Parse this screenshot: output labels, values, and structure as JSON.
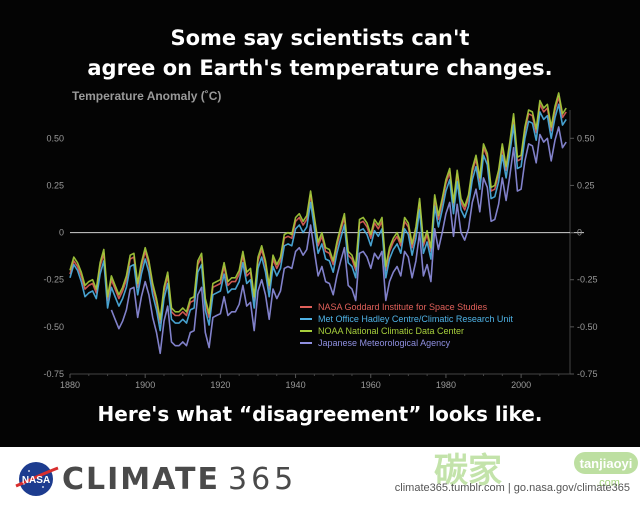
{
  "headline": {
    "line1": "Some say scientists can't",
    "line2": "agree on Earth's temperature changes.",
    "bottom": "Here's what “disagreement” looks like."
  },
  "footer": {
    "logo_text": "NASA",
    "brand_name": "CLIMATE",
    "brand_number": "365",
    "urls": "climate365.tumblr.com  |  go.nasa.gov/climate365",
    "watermark_cn": "碳家",
    "watermark_latin": "tanjiaoyi",
    "watermark_domain": ".com"
  },
  "colors": {
    "background": "#040404",
    "axis_text": "#9a9a9a",
    "zero_line": "#cfcfcf",
    "nasa": "#e0605a",
    "met": "#4fb3e6",
    "noaa": "#a7cf3c",
    "jma": "#8f8fe0"
  },
  "chart_data": {
    "type": "line",
    "title": "Temperature Anomaly (˚C)",
    "xlabel": "",
    "ylabel": "",
    "xlim": [
      1880,
      2013
    ],
    "ylim": [
      -0.75,
      0.65
    ],
    "xticks": [
      1880,
      1900,
      1920,
      1940,
      1960,
      1980,
      2000
    ],
    "yticks": [
      -0.75,
      -0.5,
      -0.25,
      0,
      0.25,
      0.5
    ],
    "ytick_labels": [
      "-0.75",
      "-0.50",
      "-0.25",
      "0",
      "0.25",
      "0.50"
    ],
    "legend_position": "lower-right",
    "grid": false,
    "series": [
      {
        "name": "NASA Goddard Institute for Space Studies",
        "color": "#e0605a",
        "start": 1880,
        "values": [
          -0.22,
          -0.15,
          -0.18,
          -0.23,
          -0.3,
          -0.28,
          -0.27,
          -0.32,
          -0.18,
          -0.11,
          -0.36,
          -0.25,
          -0.3,
          -0.35,
          -0.31,
          -0.25,
          -0.14,
          -0.13,
          -0.29,
          -0.18,
          -0.1,
          -0.17,
          -0.29,
          -0.37,
          -0.48,
          -0.31,
          -0.23,
          -0.42,
          -0.44,
          -0.44,
          -0.42,
          -0.44,
          -0.37,
          -0.36,
          -0.17,
          -0.13,
          -0.37,
          -0.45,
          -0.29,
          -0.28,
          -0.27,
          -0.18,
          -0.28,
          -0.26,
          -0.26,
          -0.22,
          -0.12,
          -0.23,
          -0.21,
          -0.36,
          -0.15,
          -0.09,
          -0.17,
          -0.3,
          -0.14,
          -0.19,
          -0.15,
          -0.03,
          -0.02,
          -0.03,
          0.06,
          0.08,
          0.04,
          0.07,
          0.2,
          0.06,
          -0.07,
          -0.02,
          -0.1,
          -0.11,
          -0.17,
          -0.07,
          0.01,
          0.08,
          -0.12,
          -0.14,
          -0.2,
          0.05,
          0.06,
          0.03,
          -0.03,
          0.05,
          0.02,
          0.06,
          -0.2,
          -0.1,
          -0.05,
          -0.02,
          -0.07,
          0.06,
          0.03,
          -0.08,
          0.01,
          0.16,
          -0.07,
          -0.01,
          -0.1,
          0.18,
          0.07,
          0.16,
          0.26,
          0.32,
          0.14,
          0.31,
          0.16,
          0.12,
          0.18,
          0.32,
          0.39,
          0.27,
          0.45,
          0.4,
          0.22,
          0.23,
          0.31,
          0.45,
          0.33,
          0.46,
          0.61,
          0.38,
          0.39,
          0.54,
          0.63,
          0.62,
          0.53,
          0.68,
          0.64,
          0.66,
          0.54,
          0.65,
          0.72,
          0.61,
          0.64
        ]
      },
      {
        "name": "Met Office Hadley Centre/Climatic Research Unit",
        "color": "#4fb3e6",
        "start": 1880,
        "values": [
          -0.24,
          -0.17,
          -0.2,
          -0.26,
          -0.34,
          -0.32,
          -0.31,
          -0.35,
          -0.22,
          -0.15,
          -0.4,
          -0.29,
          -0.34,
          -0.39,
          -0.35,
          -0.29,
          -0.18,
          -0.17,
          -0.33,
          -0.22,
          -0.14,
          -0.21,
          -0.33,
          -0.41,
          -0.52,
          -0.35,
          -0.27,
          -0.46,
          -0.48,
          -0.48,
          -0.46,
          -0.48,
          -0.41,
          -0.4,
          -0.21,
          -0.17,
          -0.41,
          -0.49,
          -0.33,
          -0.32,
          -0.31,
          -0.22,
          -0.32,
          -0.3,
          -0.3,
          -0.26,
          -0.16,
          -0.27,
          -0.25,
          -0.4,
          -0.19,
          -0.13,
          -0.21,
          -0.34,
          -0.18,
          -0.23,
          -0.19,
          -0.07,
          -0.06,
          -0.07,
          0.02,
          0.04,
          0.0,
          0.03,
          0.16,
          0.02,
          -0.11,
          -0.06,
          -0.14,
          -0.15,
          -0.21,
          -0.11,
          -0.03,
          0.04,
          -0.16,
          -0.18,
          -0.24,
          0.01,
          0.02,
          -0.01,
          -0.07,
          0.01,
          -0.02,
          0.02,
          -0.24,
          -0.14,
          -0.09,
          -0.06,
          -0.11,
          0.02,
          -0.01,
          -0.12,
          -0.03,
          0.12,
          -0.11,
          -0.05,
          -0.14,
          0.14,
          0.03,
          0.12,
          0.22,
          0.28,
          0.1,
          0.27,
          0.12,
          0.08,
          0.14,
          0.28,
          0.35,
          0.23,
          0.41,
          0.36,
          0.18,
          0.19,
          0.27,
          0.41,
          0.29,
          0.42,
          0.57,
          0.34,
          0.35,
          0.5,
          0.59,
          0.58,
          0.49,
          0.64,
          0.6,
          0.62,
          0.5,
          0.61,
          0.68,
          0.57,
          0.6
        ]
      },
      {
        "name": "NOAA National Climatic Data Center",
        "color": "#a7cf3c",
        "start": 1880,
        "values": [
          -0.2,
          -0.13,
          -0.16,
          -0.21,
          -0.28,
          -0.26,
          -0.25,
          -0.3,
          -0.16,
          -0.09,
          -0.34,
          -0.23,
          -0.28,
          -0.33,
          -0.29,
          -0.23,
          -0.12,
          -0.11,
          -0.27,
          -0.16,
          -0.08,
          -0.15,
          -0.27,
          -0.35,
          -0.46,
          -0.29,
          -0.21,
          -0.4,
          -0.42,
          -0.42,
          -0.4,
          -0.42,
          -0.35,
          -0.34,
          -0.15,
          -0.11,
          -0.35,
          -0.43,
          -0.27,
          -0.26,
          -0.25,
          -0.16,
          -0.26,
          -0.24,
          -0.24,
          -0.2,
          -0.1,
          -0.21,
          -0.19,
          -0.34,
          -0.13,
          -0.07,
          -0.15,
          -0.28,
          -0.12,
          -0.17,
          -0.13,
          -0.01,
          0.0,
          -0.01,
          0.08,
          0.1,
          0.06,
          0.09,
          0.22,
          0.08,
          -0.05,
          0.0,
          -0.08,
          -0.09,
          -0.15,
          -0.05,
          0.03,
          0.1,
          -0.1,
          -0.12,
          -0.18,
          0.07,
          0.08,
          0.05,
          -0.01,
          0.07,
          0.04,
          0.08,
          -0.18,
          -0.08,
          -0.03,
          0.0,
          -0.05,
          0.08,
          0.05,
          -0.06,
          0.03,
          0.18,
          -0.05,
          0.01,
          -0.08,
          0.2,
          0.09,
          0.18,
          0.28,
          0.34,
          0.16,
          0.33,
          0.18,
          0.14,
          0.2,
          0.34,
          0.41,
          0.29,
          0.47,
          0.42,
          0.24,
          0.25,
          0.33,
          0.47,
          0.35,
          0.48,
          0.63,
          0.4,
          0.41,
          0.56,
          0.65,
          0.64,
          0.55,
          0.7,
          0.66,
          0.68,
          0.56,
          0.67,
          0.74,
          0.63,
          0.66
        ]
      },
      {
        "name": "Japanese Meteorological Agency",
        "color": "#8f8fe0",
        "start": 1891,
        "values": [
          -0.41,
          -0.46,
          -0.51,
          -0.47,
          -0.41,
          -0.3,
          -0.29,
          -0.45,
          -0.34,
          -0.26,
          -0.33,
          -0.45,
          -0.53,
          -0.64,
          -0.47,
          -0.39,
          -0.58,
          -0.6,
          -0.6,
          -0.58,
          -0.6,
          -0.53,
          -0.52,
          -0.33,
          -0.29,
          -0.53,
          -0.61,
          -0.45,
          -0.44,
          -0.43,
          -0.34,
          -0.44,
          -0.42,
          -0.42,
          -0.38,
          -0.28,
          -0.39,
          -0.37,
          -0.52,
          -0.31,
          -0.25,
          -0.33,
          -0.46,
          -0.3,
          -0.35,
          -0.31,
          -0.19,
          -0.18,
          -0.19,
          -0.1,
          -0.08,
          -0.12,
          -0.09,
          0.04,
          -0.1,
          -0.23,
          -0.18,
          -0.26,
          -0.27,
          -0.33,
          -0.23,
          -0.15,
          -0.08,
          -0.28,
          -0.3,
          -0.36,
          -0.11,
          -0.1,
          -0.13,
          -0.19,
          -0.11,
          -0.14,
          -0.1,
          -0.36,
          -0.26,
          -0.21,
          -0.18,
          -0.23,
          -0.1,
          -0.13,
          -0.24,
          -0.15,
          0.0,
          -0.23,
          -0.17,
          -0.26,
          0.02,
          -0.09,
          0.0,
          0.1,
          0.16,
          -0.02,
          0.15,
          0.0,
          -0.04,
          0.02,
          0.16,
          0.23,
          0.11,
          0.29,
          0.24,
          0.06,
          0.07,
          0.15,
          0.29,
          0.17,
          0.3,
          0.45,
          0.22,
          0.23,
          0.38,
          0.47,
          0.46,
          0.37,
          0.52,
          0.48,
          0.5,
          0.38,
          0.49,
          0.56,
          0.45,
          0.48
        ]
      }
    ]
  }
}
